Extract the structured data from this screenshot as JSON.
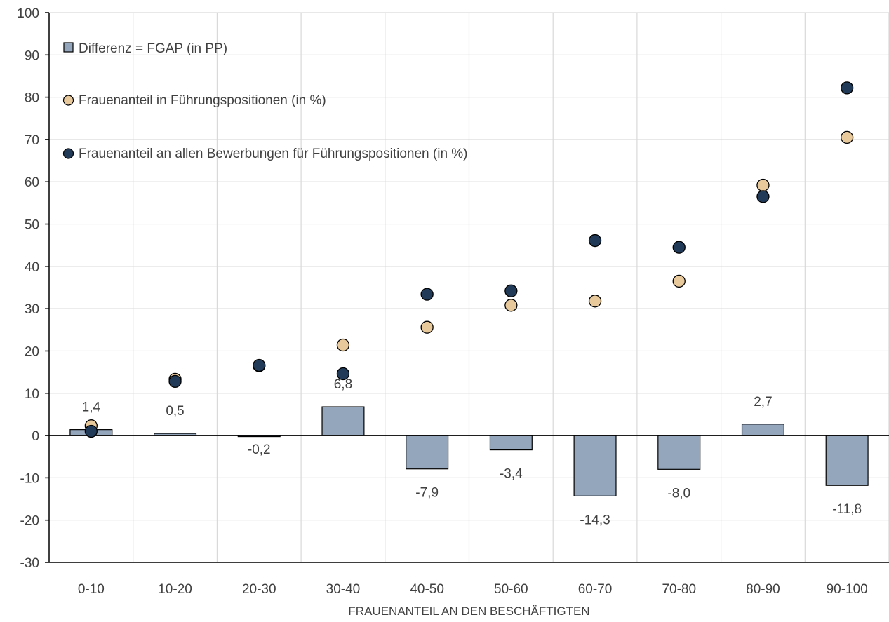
{
  "chart_data": {
    "type": "bar",
    "title": "",
    "xlabel": "FRAUENANTEIL AN DEN BESCHÄFTIGTEN",
    "ylabel": "",
    "ylim": [
      -30,
      100
    ],
    "ytick_step": 10,
    "grid": true,
    "legend_position": "top-left",
    "categories": [
      "0-10",
      "10-20",
      "20-30",
      "30-40",
      "40-50",
      "50-60",
      "60-70",
      "70-80",
      "80-90",
      "90-100"
    ],
    "series": [
      {
        "name": "Differenz = FGAP (in PP)",
        "kind": "bar",
        "color": "#94a6bb",
        "values": [
          1.4,
          0.5,
          -0.2,
          6.8,
          -7.9,
          -3.4,
          -14.3,
          -8.0,
          2.7,
          -11.8
        ],
        "labels": [
          "1,4",
          "0,5",
          "-0,2",
          "6,8",
          "-7,9",
          "-3,4",
          "-14,3",
          "-8,0",
          "2,7",
          "-11,8"
        ]
      },
      {
        "name": "Frauenanteil in Führungspositionen (in %)",
        "kind": "scatter",
        "color": "#e8c99b",
        "values": [
          2.3,
          13.3,
          16.5,
          21.4,
          25.6,
          30.8,
          31.8,
          36.5,
          59.2,
          70.5
        ]
      },
      {
        "name": "Frauenanteil an allen Bewerbungen für Führungspositionen (in %)",
        "kind": "scatter",
        "color": "#203a57",
        "values": [
          1.0,
          12.8,
          16.6,
          14.6,
          33.4,
          34.2,
          46.1,
          44.5,
          56.5,
          82.2
        ]
      }
    ]
  }
}
